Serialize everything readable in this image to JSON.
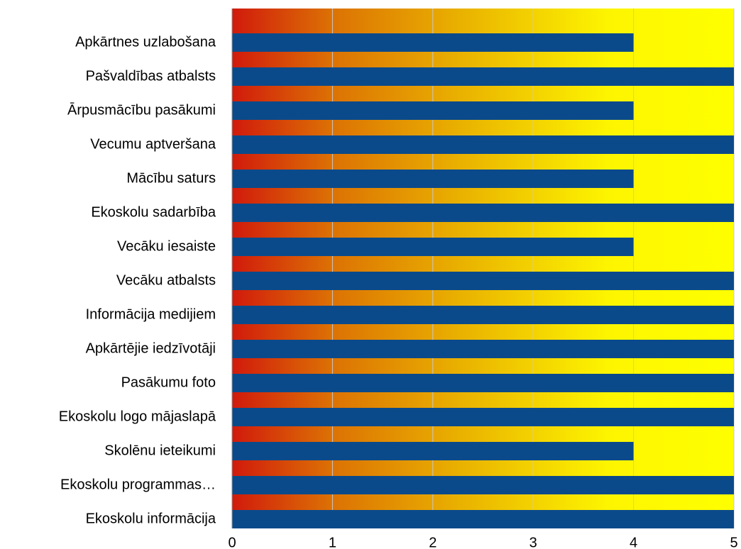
{
  "chart_data": {
    "type": "barh",
    "categories": [
      "Apkārtnes uzlabošana",
      "Pašvaldības atbalsts",
      "Ārpusmācību pasākumi",
      "Vecumu aptveršana",
      "Mācību saturs",
      "Ekoskolu sadarbība",
      "Vecāku iesaiste",
      "Vecāku atbalsts",
      "Informācija medijiem",
      "Apkārtējie iedzīvotāji",
      "Pasākumu foto",
      "Ekoskolu logo mājaslapā",
      "Skolēnu ieteikumi",
      "Ekoskolu programmas…",
      "Ekoskolu informācija"
    ],
    "values": [
      4,
      5,
      4,
      5,
      4,
      5,
      4,
      5,
      5,
      5,
      5,
      5,
      4,
      5,
      5
    ],
    "color": "#0b4a8a",
    "xlim": [
      0,
      5
    ],
    "xticks": [
      0,
      1,
      2,
      3,
      4,
      5
    ],
    "grid": true
  }
}
